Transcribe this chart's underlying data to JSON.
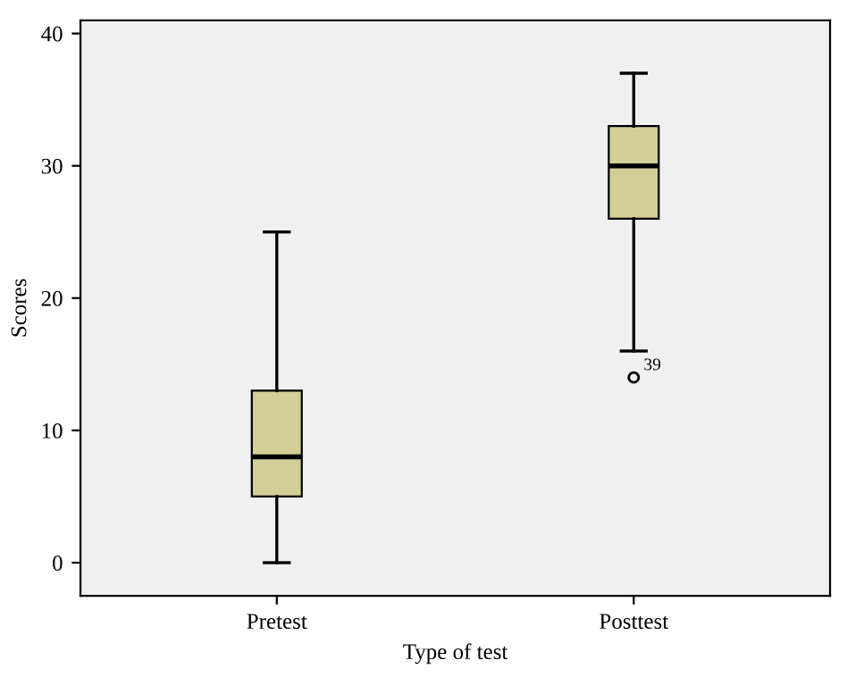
{
  "chart_data": {
    "type": "box",
    "xlabel": "Type of test",
    "ylabel": "Scores",
    "categories": [
      "Pretest",
      "Posttest"
    ],
    "boxes": [
      {
        "low": 0,
        "q1": 5,
        "median": 8,
        "q3": 13,
        "high": 25
      },
      {
        "low": 16,
        "q1": 26,
        "median": 30,
        "q3": 33,
        "high": 37,
        "outliers": [
          14
        ]
      }
    ],
    "color": "#d3ce97",
    "ylim": [
      -2.5,
      41
    ],
    "yticks": [
      0,
      10,
      20,
      30,
      40
    ],
    "annotations": [
      "39"
    ]
  }
}
